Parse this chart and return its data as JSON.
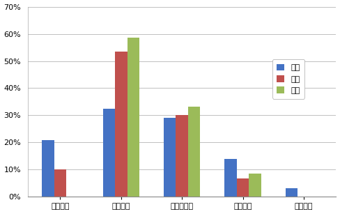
{
  "categories": [
    "明显改善",
    "有所改善",
    "无明显变化",
    "有所下降",
    "明显下降"
  ],
  "series": {
    "东部": [
      0.21,
      0.325,
      0.29,
      0.14,
      0.033
    ],
    "中部": [
      0.1,
      0.535,
      0.3,
      0.067,
      0.0
    ],
    "西部": [
      0.0,
      0.585,
      0.333,
      0.087,
      0.0
    ]
  },
  "colors": {
    "东部": "#4472C4",
    "中部": "#C0504D",
    "西部": "#9BBB59"
  },
  "legend_labels": [
    "东部",
    "中部",
    "西部"
  ],
  "ylim": [
    0,
    0.7
  ],
  "yticks": [
    0.0,
    0.1,
    0.2,
    0.3,
    0.4,
    0.5,
    0.6,
    0.7
  ],
  "ytick_labels": [
    "0%",
    "10%",
    "20%",
    "30%",
    "40%",
    "50%",
    "60%",
    "70%"
  ],
  "bar_width": 0.2,
  "background_color": "#FFFFFF",
  "grid_color": "#C0C0C0",
  "font_size": 8,
  "legend_font_size": 8
}
